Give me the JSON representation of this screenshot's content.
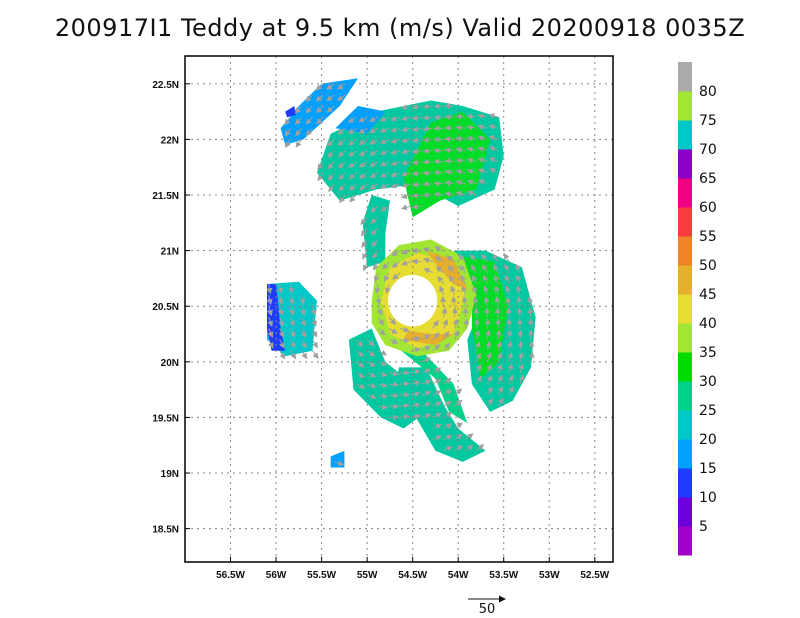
{
  "title": "200917I1 Teddy at 9.5 km (m/s) Valid 20200918 0035Z",
  "chart_data": {
    "type": "heatmap",
    "title": "200917I1 Teddy at 9.5 km (m/s) Valid 20200918 0035Z",
    "xlim": [
      -57,
      -52.3
    ],
    "ylim": [
      18.2,
      22.75
    ],
    "x_ticks": [
      {
        "value": -56.5,
        "label": "56.5W"
      },
      {
        "value": -56.0,
        "label": "56W"
      },
      {
        "value": -55.5,
        "label": "55.5W"
      },
      {
        "value": -55.0,
        "label": "55W"
      },
      {
        "value": -54.5,
        "label": "54.5W"
      },
      {
        "value": -54.0,
        "label": "54W"
      },
      {
        "value": -53.5,
        "label": "53.5W"
      },
      {
        "value": -53.0,
        "label": "53W"
      },
      {
        "value": -52.5,
        "label": "52.5W"
      }
    ],
    "y_ticks": [
      {
        "value": 18.5,
        "label": "18.5N"
      },
      {
        "value": 19.0,
        "label": "19N"
      },
      {
        "value": 19.5,
        "label": "19.5N"
      },
      {
        "value": 20.0,
        "label": "20N"
      },
      {
        "value": 20.5,
        "label": "20.5N"
      },
      {
        "value": 21.0,
        "label": "21N"
      },
      {
        "value": 21.5,
        "label": "21.5N"
      },
      {
        "value": 22.0,
        "label": "22N"
      },
      {
        "value": 22.5,
        "label": "22.5N"
      }
    ],
    "grid": true,
    "center": {
      "lon": -54.5,
      "lat": 20.55
    },
    "colorbar": {
      "colors": [
        "#a000c8",
        "#6e00dc",
        "#1e3cff",
        "#00a0ff",
        "#00c8c8",
        "#00d28c",
        "#00dc00",
        "#a0e632",
        "#e6dc32",
        "#e6af2d",
        "#f08228",
        "#fa3c3c",
        "#f00082",
        "#8c00c8",
        "#00c8c8",
        "#a0e632",
        "#aaaaaa"
      ],
      "labels": [
        "5",
        "10",
        "15",
        "20",
        "25",
        "30",
        "35",
        "40",
        "45",
        "50",
        "55",
        "60",
        "65",
        "70",
        "75",
        "80"
      ]
    },
    "regions": [
      {
        "name": "north-band",
        "color": "#00c8a0",
        "points": [
          [
            -55.55,
            21.7
          ],
          [
            -55.4,
            22.05
          ],
          [
            -54.9,
            22.25
          ],
          [
            -54.3,
            22.35
          ],
          [
            -53.95,
            22.3
          ],
          [
            -53.55,
            22.2
          ],
          [
            -53.5,
            21.85
          ],
          [
            -53.6,
            21.55
          ],
          [
            -54.0,
            21.4
          ],
          [
            -54.45,
            21.6
          ],
          [
            -54.9,
            21.55
          ],
          [
            -55.3,
            21.45
          ]
        ]
      },
      {
        "name": "north-band-green",
        "color": "#00dc28",
        "points": [
          [
            -54.6,
            21.65
          ],
          [
            -54.3,
            22.15
          ],
          [
            -53.95,
            22.25
          ],
          [
            -53.65,
            22.0
          ],
          [
            -53.8,
            21.55
          ],
          [
            -54.2,
            21.45
          ],
          [
            -54.5,
            21.3
          ]
        ]
      },
      {
        "name": "east-band",
        "color": "#00c8a0",
        "points": [
          [
            -54.05,
            21.0
          ],
          [
            -53.7,
            21.0
          ],
          [
            -53.3,
            20.85
          ],
          [
            -53.15,
            20.4
          ],
          [
            -53.2,
            19.95
          ],
          [
            -53.4,
            19.65
          ],
          [
            -53.65,
            19.55
          ],
          [
            -53.85,
            19.8
          ],
          [
            -53.9,
            20.2
          ],
          [
            -53.75,
            20.5
          ],
          [
            -53.85,
            20.75
          ]
        ]
      },
      {
        "name": "east-band-green",
        "color": "#00dc28",
        "points": [
          [
            -53.95,
            20.95
          ],
          [
            -53.6,
            20.9
          ],
          [
            -53.45,
            20.5
          ],
          [
            -53.55,
            20.0
          ],
          [
            -53.75,
            19.85
          ],
          [
            -53.85,
            20.3
          ],
          [
            -53.85,
            20.7
          ]
        ]
      },
      {
        "name": "south-band",
        "color": "#00c8a0",
        "points": [
          [
            -54.35,
            19.95
          ],
          [
            -54.15,
            19.6
          ],
          [
            -54.0,
            19.4
          ],
          [
            -53.7,
            19.2
          ],
          [
            -53.95,
            19.1
          ],
          [
            -54.25,
            19.2
          ],
          [
            -54.5,
            19.55
          ],
          [
            -54.7,
            19.75
          ],
          [
            -54.65,
            19.95
          ]
        ]
      },
      {
        "name": "southwest-band",
        "color": "#00c8a0",
        "points": [
          [
            -55.2,
            20.2
          ],
          [
            -55.15,
            19.75
          ],
          [
            -54.85,
            19.5
          ],
          [
            -54.6,
            19.4
          ],
          [
            -54.35,
            19.55
          ],
          [
            -54.5,
            19.8
          ],
          [
            -54.8,
            20.0
          ],
          [
            -54.95,
            20.3
          ]
        ]
      },
      {
        "name": "southwest-band-green",
        "color": "#00d28c",
        "points": [
          [
            -54.7,
            20.15
          ],
          [
            -54.25,
            19.85
          ],
          [
            -54.1,
            19.55
          ],
          [
            -53.9,
            19.45
          ],
          [
            -54.05,
            19.8
          ],
          [
            -54.4,
            20.1
          ]
        ]
      },
      {
        "name": "west-arm",
        "color": "#00c8a0",
        "points": [
          [
            -55.0,
            20.85
          ],
          [
            -55.05,
            21.25
          ],
          [
            -54.95,
            21.5
          ],
          [
            -54.75,
            21.45
          ],
          [
            -54.8,
            21.15
          ],
          [
            -54.8,
            20.9
          ]
        ]
      },
      {
        "name": "eyewall-outer",
        "color": "#a0e632",
        "points": [
          [
            -54.95,
            20.55
          ],
          [
            -54.9,
            20.85
          ],
          [
            -54.65,
            21.05
          ],
          [
            -54.3,
            21.1
          ],
          [
            -53.95,
            20.95
          ],
          [
            -53.8,
            20.6
          ],
          [
            -53.9,
            20.3
          ],
          [
            -54.1,
            20.1
          ],
          [
            -54.45,
            20.05
          ],
          [
            -54.8,
            20.15
          ],
          [
            -54.95,
            20.35
          ]
        ]
      },
      {
        "name": "eyewall-yellow",
        "color": "#e6dc32",
        "points": [
          [
            -54.85,
            20.55
          ],
          [
            -54.75,
            20.85
          ],
          [
            -54.45,
            20.98
          ],
          [
            -54.1,
            20.9
          ],
          [
            -53.92,
            20.6
          ],
          [
            -54.05,
            20.25
          ],
          [
            -54.45,
            20.12
          ],
          [
            -54.75,
            20.25
          ]
        ]
      },
      {
        "name": "eyewall-orange-ne",
        "color": "#e6af2d",
        "points": [
          [
            -54.35,
            21.0
          ],
          [
            -54.05,
            20.92
          ],
          [
            -53.9,
            20.65
          ],
          [
            -54.05,
            20.7
          ],
          [
            -54.25,
            20.88
          ]
        ]
      },
      {
        "name": "eyewall-orange-s",
        "color": "#e6af2d",
        "points": [
          [
            -54.6,
            20.2
          ],
          [
            -54.25,
            20.15
          ],
          [
            -54.05,
            20.25
          ],
          [
            -54.3,
            20.25
          ],
          [
            -54.55,
            20.28
          ]
        ]
      },
      {
        "name": "west-patch",
        "color": "#00c8c8",
        "points": [
          [
            -56.1,
            20.7
          ],
          [
            -55.75,
            20.72
          ],
          [
            -55.55,
            20.55
          ],
          [
            -55.6,
            20.1
          ],
          [
            -55.9,
            20.05
          ],
          [
            -56.1,
            20.2
          ]
        ]
      },
      {
        "name": "west-patch-blue",
        "color": "#1e3cff",
        "points": [
          [
            -56.1,
            20.7
          ],
          [
            -56.0,
            20.7
          ],
          [
            -55.95,
            20.3
          ],
          [
            -55.9,
            20.1
          ],
          [
            -56.05,
            20.1
          ],
          [
            -56.1,
            20.3
          ]
        ]
      },
      {
        "name": "northwest-blob",
        "color": "#00a0ff",
        "points": [
          [
            -55.95,
            22.1
          ],
          [
            -55.75,
            22.3
          ],
          [
            -55.5,
            22.5
          ],
          [
            -55.1,
            22.55
          ],
          [
            -55.3,
            22.3
          ],
          [
            -55.7,
            22.0
          ],
          [
            -55.9,
            21.95
          ]
        ]
      },
      {
        "name": "northwest-blob-dark",
        "color": "#1e3cff",
        "points": [
          [
            -55.9,
            22.25
          ],
          [
            -55.8,
            22.3
          ],
          [
            -55.78,
            22.22
          ],
          [
            -55.88,
            22.2
          ]
        ]
      },
      {
        "name": "north-blue",
        "color": "#00a0ff",
        "points": [
          [
            -55.35,
            22.1
          ],
          [
            -55.1,
            22.3
          ],
          [
            -54.8,
            22.25
          ],
          [
            -55.0,
            22.05
          ]
        ]
      },
      {
        "name": "small-patch-south",
        "color": "#00a0ff",
        "points": [
          [
            -55.4,
            19.15
          ],
          [
            -55.25,
            19.2
          ],
          [
            -55.25,
            19.05
          ],
          [
            -55.4,
            19.05
          ]
        ]
      }
    ],
    "eye": {
      "lon": -54.5,
      "lat": 20.55,
      "radius_deg": 0.27
    },
    "vector_reference": {
      "label": "50",
      "value": 50
    },
    "series": []
  }
}
